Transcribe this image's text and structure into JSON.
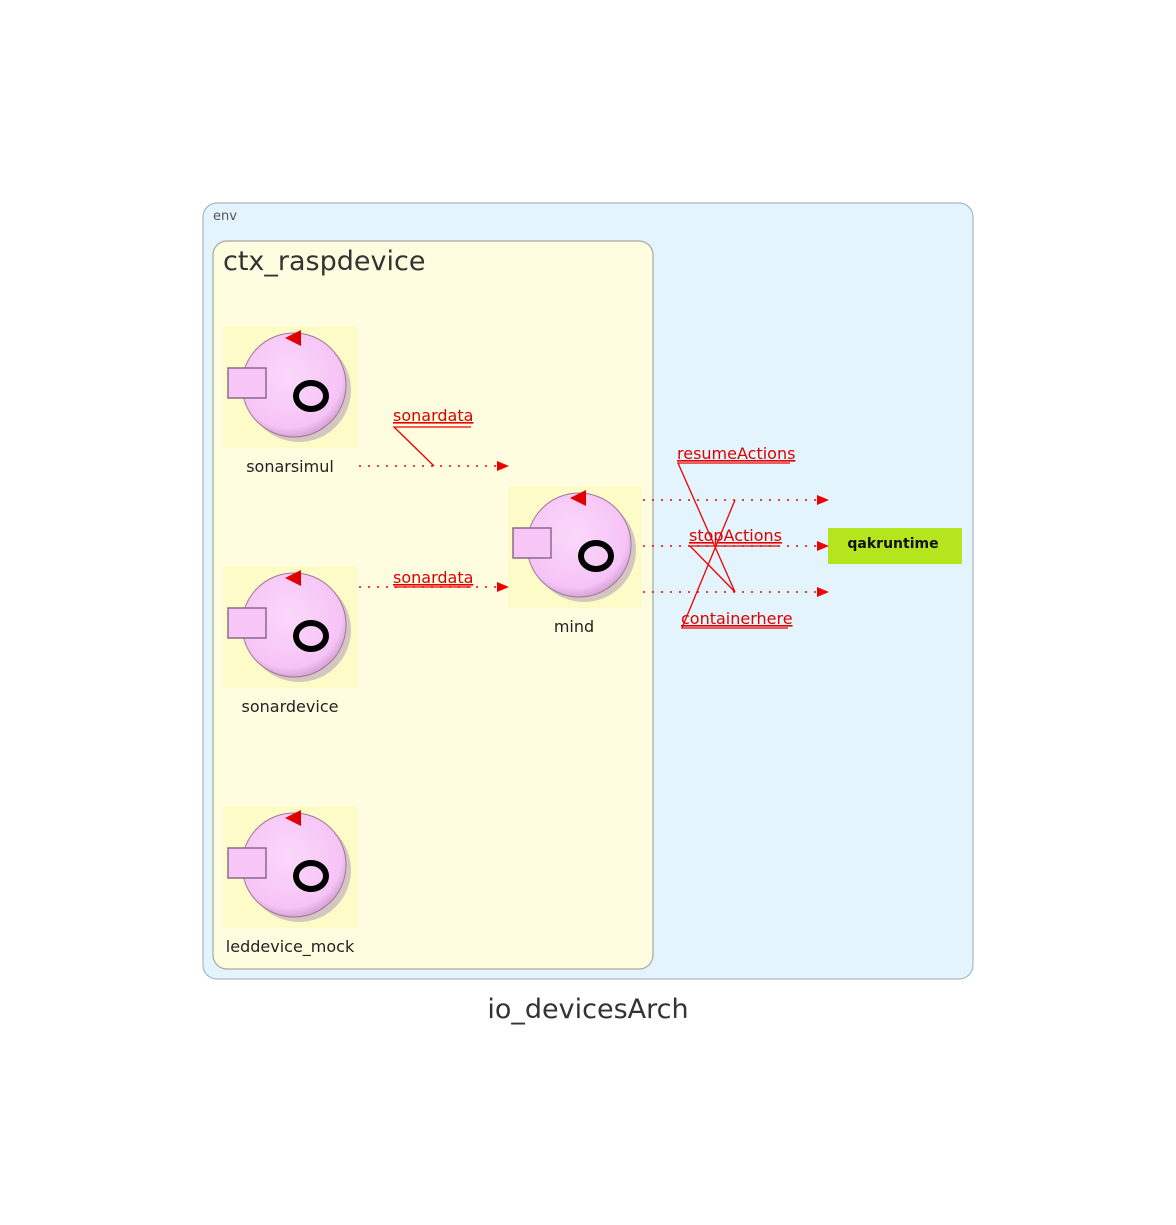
{
  "diagram": {
    "title": "io_devicesArch",
    "env_label": "env",
    "context_label": "ctx_raspdevice",
    "actors": [
      {
        "id": "sonarsimul",
        "label": "sonarsimul"
      },
      {
        "id": "sonardevice",
        "label": "sonardevice"
      },
      {
        "id": "leddevice_mock",
        "label": "leddevice_mock"
      },
      {
        "id": "mind",
        "label": "mind"
      }
    ],
    "external": {
      "label": "qakruntime",
      "color": "#b5e61d"
    },
    "edges": [
      {
        "from": "sonarsimul",
        "to": "mind",
        "label": "sonardata"
      },
      {
        "from": "sonardevice",
        "to": "mind",
        "label": "sonardata"
      },
      {
        "from": "mind",
        "to": "qakruntime",
        "label": "resumeActions"
      },
      {
        "from": "mind",
        "to": "qakruntime",
        "label": "stopActions"
      },
      {
        "from": "mind",
        "to": "qakruntime",
        "label": "containerhere"
      }
    ],
    "colors": {
      "env_fill": "#e3f4fc",
      "context_fill": "#fefde0",
      "actor_fill": "#f8c8f8",
      "edge": "#ee0000"
    }
  }
}
